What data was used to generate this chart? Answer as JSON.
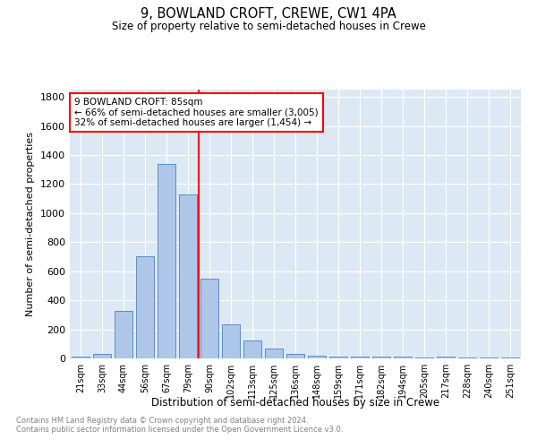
{
  "title": "9, BOWLAND CROFT, CREWE, CW1 4PA",
  "subtitle": "Size of property relative to semi-detached houses in Crewe",
  "xlabel": "Distribution of semi-detached houses by size in Crewe",
  "ylabel": "Number of semi-detached properties",
  "footnote1": "Contains HM Land Registry data © Crown copyright and database right 2024.",
  "footnote2": "Contains public sector information licensed under the Open Government Licence v3.0.",
  "annotation_title": "9 BOWLAND CROFT: 85sqm",
  "annotation_line1": "← 66% of semi-detached houses are smaller (3,005)",
  "annotation_line2": "32% of semi-detached houses are larger (1,454) →",
  "bar_labels": [
    "21sqm",
    "33sqm",
    "44sqm",
    "56sqm",
    "67sqm",
    "79sqm",
    "90sqm",
    "102sqm",
    "113sqm",
    "125sqm",
    "136sqm",
    "148sqm",
    "159sqm",
    "171sqm",
    "182sqm",
    "194sqm",
    "205sqm",
    "217sqm",
    "228sqm",
    "240sqm",
    "251sqm"
  ],
  "bar_values": [
    15,
    30,
    325,
    700,
    1340,
    1130,
    550,
    235,
    125,
    65,
    30,
    20,
    15,
    10,
    10,
    10,
    5,
    15,
    5,
    5,
    5
  ],
  "bar_color": "#aec6e8",
  "bar_edge_color": "#5a8fc2",
  "vline_pos": 5.5,
  "ylim": [
    0,
    1850
  ],
  "yticks": [
    0,
    200,
    400,
    600,
    800,
    1000,
    1200,
    1400,
    1600,
    1800
  ],
  "annotation_box_color": "white",
  "annotation_box_edge": "red",
  "vline_color": "red",
  "axes_bg_color": "#dce9f5"
}
